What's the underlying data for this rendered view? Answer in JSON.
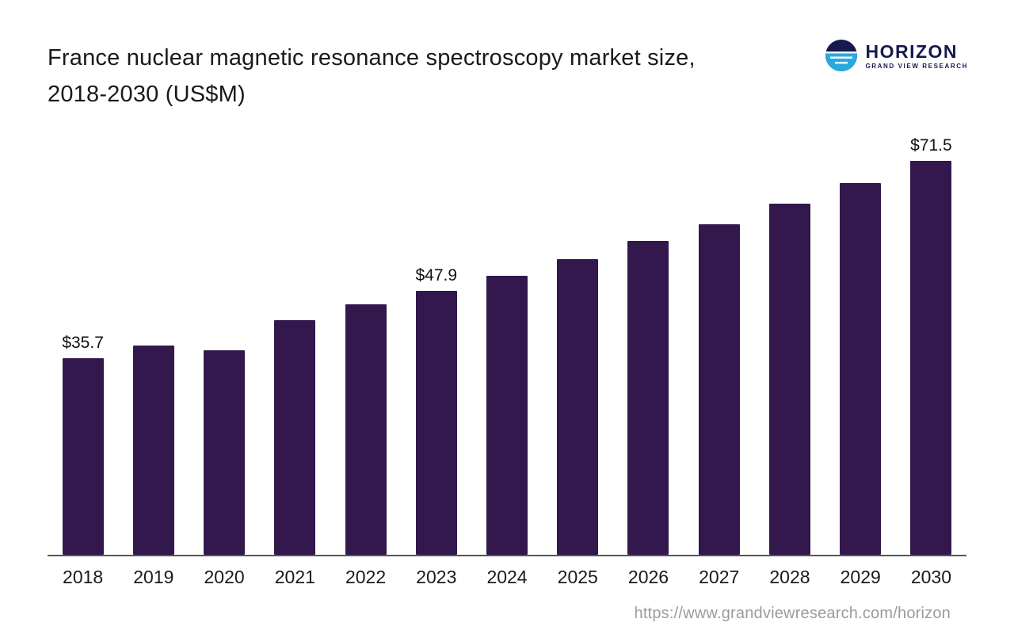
{
  "header": {
    "title_line1": "France nuclear magnetic resonance spectroscopy market size,",
    "title_line2": "2018-2030 (US$M)",
    "logo": {
      "name": "HORIZON",
      "subtitle": "GRAND VIEW RESEARCH",
      "navy_color": "#15194e",
      "blue_color": "#2aa9e0"
    }
  },
  "chart_data": {
    "type": "bar",
    "title": "France nuclear magnetic resonance spectroscopy market size, 2018-2030 (US$M)",
    "categories": [
      "2018",
      "2019",
      "2020",
      "2021",
      "2022",
      "2023",
      "2024",
      "2025",
      "2026",
      "2027",
      "2028",
      "2029",
      "2030"
    ],
    "values": [
      35.7,
      38.0,
      37.1,
      42.6,
      45.5,
      47.9,
      50.6,
      53.7,
      57.0,
      60.0,
      63.7,
      67.5,
      71.5
    ],
    "data_labels": {
      "2018": "$35.7",
      "2023": "$47.9",
      "2030": "$71.5"
    },
    "bar_color": "#32184d",
    "xlabel": "",
    "ylabel": "",
    "ylim": [
      0,
      75
    ],
    "grid": false,
    "legend": "none",
    "axis_line_color": "#555555"
  },
  "footer": {
    "url": "https://www.grandviewresearch.com/horizon"
  }
}
